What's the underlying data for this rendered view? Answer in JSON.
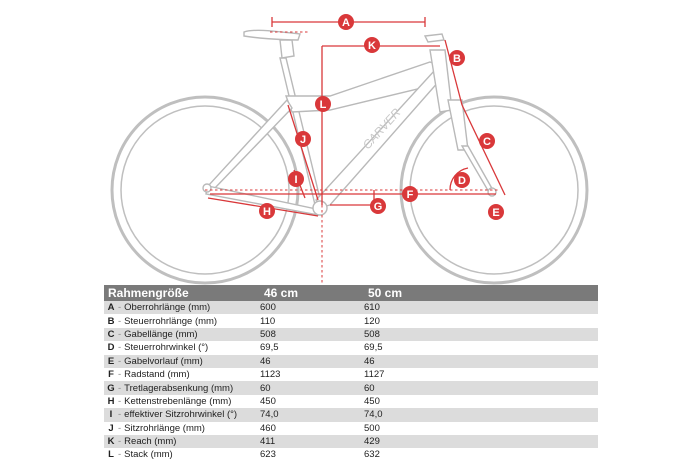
{
  "diagram": {
    "brand": "CARVER",
    "labels": [
      "A",
      "B",
      "C",
      "D",
      "E",
      "F",
      "G",
      "H",
      "I",
      "J",
      "K",
      "L"
    ]
  },
  "table": {
    "header": {
      "size": "Rahmengröße",
      "col1": "46 cm",
      "col2": "50 cm"
    },
    "rows": [
      {
        "letter": "A",
        "name": "Oberrohrlänge (mm)",
        "v46": "600",
        "v50": "610"
      },
      {
        "letter": "B",
        "name": "Steuerrohrlänge (mm)",
        "v46": "110",
        "v50": "120"
      },
      {
        "letter": "C",
        "name": "Gabellänge (mm)",
        "v46": "508",
        "v50": "508"
      },
      {
        "letter": "D",
        "name": "Steuerrohrwinkel (°)",
        "v46": "69,5",
        "v50": "69,5"
      },
      {
        "letter": "E",
        "name": "Gabelvorlauf (mm)",
        "v46": "46",
        "v50": "46"
      },
      {
        "letter": "F",
        "name": "Radstand (mm)",
        "v46": "1123",
        "v50": "1127"
      },
      {
        "letter": "G",
        "name": "Tretlagerabsenkung (mm)",
        "v46": "60",
        "v50": "60"
      },
      {
        "letter": "H",
        "name": "Kettenstrebenlänge (mm)",
        "v46": "450",
        "v50": "450"
      },
      {
        "letter": "I",
        "name": "effektiver Sitzrohrwinkel (°)",
        "v46": "74,0",
        "v50": "74,0"
      },
      {
        "letter": "J",
        "name": "Sitzrohrlänge (mm)",
        "v46": "460",
        "v50": "500"
      },
      {
        "letter": "K",
        "name": "Reach (mm)",
        "v46": "411",
        "v50": "429"
      },
      {
        "letter": "L",
        "name": "Stack (mm)",
        "v46": "623",
        "v50": "632"
      }
    ]
  },
  "colors": {
    "accent": "#d9383a",
    "header_bg": "#7a7a7a",
    "row_shade": "#dcdcdc"
  }
}
